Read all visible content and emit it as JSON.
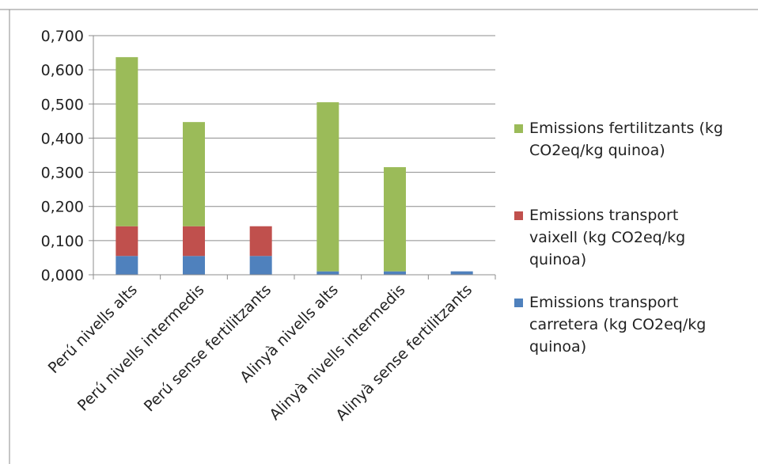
{
  "chart_data": {
    "type": "bar",
    "stacked": true,
    "categories": [
      "Perú nivells alts",
      "Perú nivells intermedis",
      "Perú sense fertilitzants",
      "Alinyà nivells alts",
      "Alinyà nivells intermedis",
      "Alinyà sense fertilitzants"
    ],
    "series": [
      {
        "name": "Emissions transport carretera (kg CO2eq/kg quinoa)",
        "color": "#4f81bd",
        "values": [
          0.055,
          0.055,
          0.055,
          0.01,
          0.01,
          0.01
        ]
      },
      {
        "name": "Emissions transport vaixell (kg CO2eq/kg quinoa)",
        "color": "#c0504d",
        "values": [
          0.087,
          0.087,
          0.087,
          0,
          0,
          0
        ]
      },
      {
        "name": "Emissions fertilitzants (kg CO2eq/kg quinoa)",
        "color": "#9bbb59",
        "values": [
          0.495,
          0.305,
          0,
          0.495,
          0.305,
          0
        ]
      }
    ],
    "ylim": [
      0,
      0.7
    ],
    "yticks": [
      "0,000",
      "0,100",
      "0,200",
      "0,300",
      "0,400",
      "0,500",
      "0,600",
      "0,700"
    ],
    "grid": true,
    "legend_position": "right",
    "legend_items": [
      {
        "label_lines": [
          "Emissions fertilitzants (kg",
          "CO2eq/kg quinoa)"
        ],
        "color": "#9bbb59"
      },
      {
        "label_lines": [
          "Emissions transport",
          "vaixell (kg CO2eq/kg",
          "quinoa)"
        ],
        "color": "#c0504d"
      },
      {
        "label_lines": [
          "Emissions transport",
          "carretera (kg CO2eq/kg",
          "quinoa)"
        ],
        "color": "#4f81bd"
      }
    ],
    "title": "",
    "xlabel": "",
    "ylabel": ""
  }
}
